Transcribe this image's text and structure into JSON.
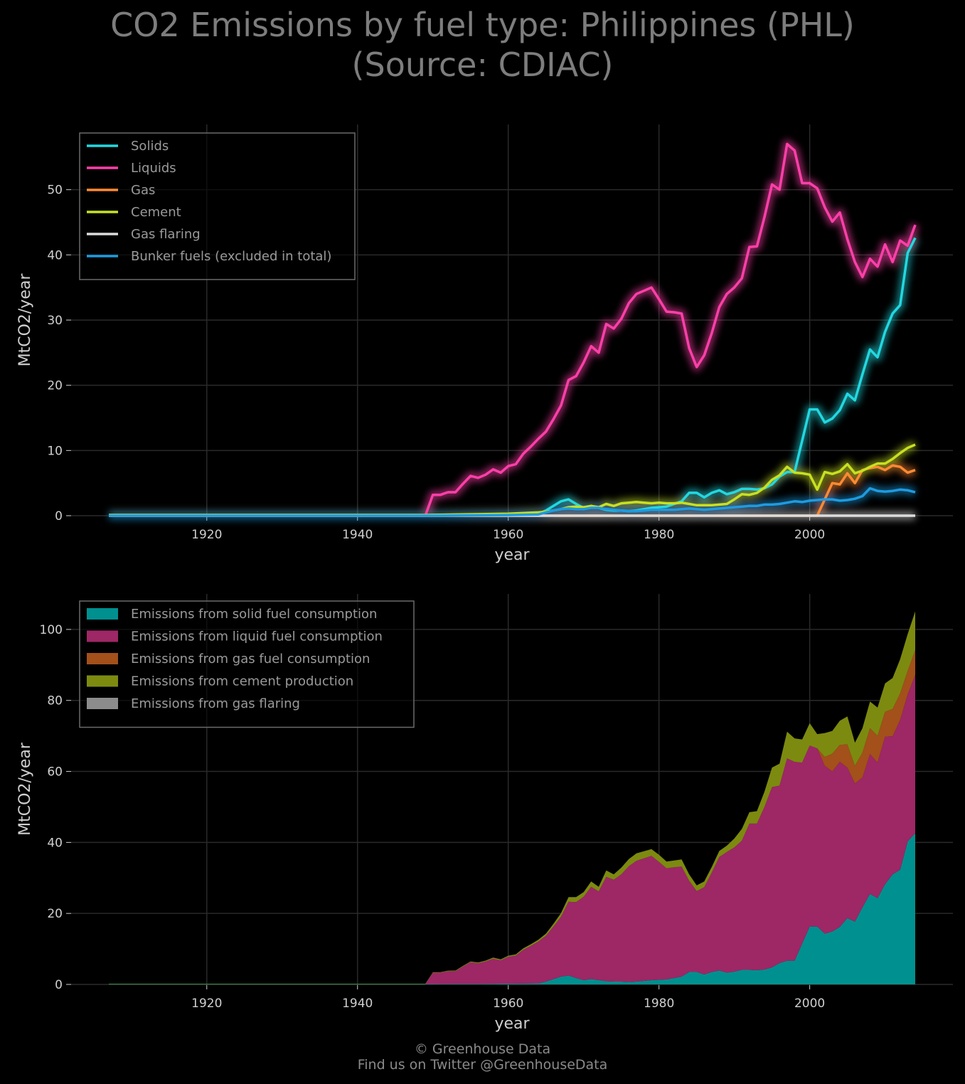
{
  "title": {
    "line1": "CO2 Emissions by fuel type: Philippines (PHL)",
    "line2": "(Source: CDIAC)"
  },
  "footer": {
    "line1": "© Greenhouse Data",
    "line2": "Find us on Twitter @GreenhouseData"
  },
  "colors": {
    "background": "#000000",
    "grid": "#2a2a2a",
    "axis_text": "#cfcfcf",
    "solids": "#22d8e0",
    "liquids": "#ff3fa9",
    "gas": "#ff8a33",
    "cement": "#c8e020",
    "gas_flaring": "#dcdcdc",
    "bunker": "#1e9be0",
    "area_solid": "#00908f",
    "area_liquid": "#9e2766",
    "area_gas": "#a3501a",
    "area_cement": "#7d8a10",
    "area_flaring": "#8c8c8c"
  },
  "chart_data": [
    {
      "type": "line",
      "xlabel": "year",
      "ylabel": "MtCO2/year",
      "xlim": [
        1902,
        2019
      ],
      "ylim": [
        0,
        60
      ],
      "xticks": [
        1920,
        1940,
        1960,
        1980,
        2000
      ],
      "yticks": [
        0,
        10,
        20,
        30,
        40,
        50
      ],
      "grid": true,
      "legend_position": "top-left",
      "series": [
        {
          "name": "Solids",
          "color": "#22d8e0",
          "x": [
            1907,
            1949,
            1960,
            1964,
            1965,
            1966,
            1967,
            1968,
            1969,
            1970,
            1971,
            1972,
            1973,
            1974,
            1975,
            1976,
            1977,
            1978,
            1979,
            1980,
            1981,
            1982,
            1983,
            1984,
            1985,
            1986,
            1987,
            1988,
            1989,
            1990,
            1991,
            1992,
            1993,
            1994,
            1995,
            1996,
            1997,
            1998,
            1999,
            2000,
            2001,
            2002,
            2003,
            2004,
            2005,
            2006,
            2007,
            2008,
            2009,
            2010,
            2011,
            2012,
            2013,
            2014
          ],
          "y": [
            0.1,
            0.1,
            0.2,
            0.3,
            0.8,
            1.5,
            2.2,
            2.5,
            1.8,
            1.2,
            1.5,
            1.2,
            0.9,
            0.8,
            0.8,
            0.7,
            0.8,
            1.0,
            1.2,
            1.3,
            1.4,
            1.8,
            2.2,
            3.5,
            3.5,
            2.8,
            3.5,
            3.9,
            3.3,
            3.6,
            4.1,
            4.1,
            4.0,
            4.2,
            4.8,
            6.0,
            6.7,
            6.7,
            11.5,
            16.3,
            16.3,
            14.3,
            14.9,
            16.2,
            18.7,
            17.7,
            21.7,
            25.5,
            24.3,
            28.2,
            31.0,
            32.3,
            40.3,
            42.6
          ]
        },
        {
          "name": "Liquids",
          "color": "#ff3fa9",
          "x": [
            1907,
            1949,
            1950,
            1951,
            1952,
            1953,
            1954,
            1955,
            1956,
            1957,
            1958,
            1959,
            1960,
            1961,
            1962,
            1963,
            1964,
            1965,
            1966,
            1967,
            1968,
            1969,
            1970,
            1971,
            1972,
            1973,
            1974,
            1975,
            1976,
            1977,
            1978,
            1979,
            1980,
            1981,
            1982,
            1983,
            1984,
            1985,
            1986,
            1987,
            1988,
            1989,
            1990,
            1991,
            1992,
            1993,
            1994,
            1995,
            1996,
            1997,
            1998,
            1999,
            2000,
            2001,
            2002,
            2003,
            2004,
            2005,
            2006,
            2007,
            2008,
            2009,
            2010,
            2011,
            2012,
            2013,
            2014
          ],
          "y": [
            0,
            0,
            3.2,
            3.2,
            3.6,
            3.6,
            4.9,
            6.1,
            5.8,
            6.3,
            7.1,
            6.6,
            7.6,
            7.9,
            9.5,
            10.6,
            11.8,
            12.9,
            14.8,
            16.9,
            20.8,
            21.4,
            23.5,
            26.0,
            25.0,
            29.4,
            28.7,
            30.2,
            32.6,
            34.0,
            34.5,
            35.0,
            33.2,
            31.3,
            31.2,
            31.0,
            25.7,
            22.8,
            24.6,
            28.0,
            32.0,
            34.0,
            35.0,
            36.4,
            41.2,
            41.3,
            45.8,
            50.8,
            50.0,
            57.0,
            56.0,
            51.0,
            51.0,
            50.2,
            47.3,
            45.1,
            46.5,
            42.4,
            38.9,
            36.6,
            39.4,
            38.2,
            41.6,
            38.9,
            42.2,
            41.4,
            44.6
          ]
        },
        {
          "name": "Gas",
          "color": "#ff8a33",
          "x": [
            1907,
            2000,
            2001,
            2002,
            2003,
            2004,
            2005,
            2006,
            2007,
            2008,
            2009,
            2010,
            2011,
            2012,
            2013,
            2014
          ],
          "y": [
            0,
            0,
            0,
            2.5,
            5.0,
            4.8,
            6.5,
            5.0,
            7.0,
            7.3,
            7.5,
            7.0,
            7.7,
            7.5,
            6.6,
            7.0
          ]
        },
        {
          "name": "Cement",
          "color": "#c8e020",
          "x": [
            1907,
            1949,
            1960,
            1964,
            1965,
            1966,
            1967,
            1968,
            1969,
            1970,
            1971,
            1972,
            1973,
            1974,
            1975,
            1976,
            1977,
            1978,
            1979,
            1980,
            1981,
            1982,
            1983,
            1984,
            1985,
            1986,
            1987,
            1988,
            1989,
            1990,
            1991,
            1992,
            1993,
            1994,
            1995,
            1996,
            1997,
            1998,
            1999,
            2000,
            2001,
            2002,
            2003,
            2004,
            2005,
            2006,
            2007,
            2008,
            2009,
            2010,
            2011,
            2012,
            2013,
            2014
          ],
          "y": [
            0.1,
            0.1,
            0.3,
            0.5,
            0.6,
            0.8,
            1.0,
            1.3,
            1.4,
            1.3,
            1.5,
            1.3,
            1.8,
            1.5,
            1.9,
            2.0,
            2.1,
            2.0,
            1.9,
            2.0,
            1.9,
            1.9,
            2.0,
            1.8,
            1.6,
            1.6,
            1.6,
            1.7,
            1.8,
            2.5,
            3.3,
            3.2,
            3.5,
            4.3,
            5.5,
            6.2,
            7.5,
            6.6,
            6.5,
            6.3,
            4.0,
            6.7,
            6.4,
            6.8,
            7.9,
            6.5,
            6.9,
            7.5,
            8.0,
            8.0,
            8.7,
            9.6,
            10.4,
            10.9
          ]
        },
        {
          "name": "Gas flaring",
          "color": "#dcdcdc",
          "x": [
            1907,
            2014
          ],
          "y": [
            0,
            0
          ]
        },
        {
          "name": "Bunker fuels (excluded in total)",
          "color": "#1e9be0",
          "x": [
            1907,
            1949,
            1960,
            1964,
            1965,
            1966,
            1967,
            1968,
            1969,
            1970,
            1971,
            1972,
            1973,
            1974,
            1975,
            1976,
            1977,
            1978,
            1979,
            1980,
            1981,
            1982,
            1983,
            1984,
            1985,
            1986,
            1987,
            1988,
            1989,
            1990,
            1991,
            1992,
            1993,
            1994,
            1995,
            1996,
            1997,
            1998,
            1999,
            2000,
            2001,
            2002,
            2003,
            2004,
            2005,
            2006,
            2007,
            2008,
            2009,
            2010,
            2011,
            2012,
            2013,
            2014
          ],
          "y": [
            0,
            0,
            0.1,
            0.2,
            0.5,
            0.8,
            1.0,
            1.1,
            1.0,
            1.0,
            1.2,
            1.2,
            1.0,
            0.9,
            0.8,
            0.7,
            0.7,
            0.8,
            0.9,
            0.9,
            0.9,
            0.9,
            1.0,
            1.1,
            1.0,
            0.9,
            1.0,
            1.1,
            1.2,
            1.3,
            1.4,
            1.5,
            1.5,
            1.7,
            1.7,
            1.8,
            2.0,
            2.2,
            2.1,
            2.3,
            2.4,
            2.5,
            2.5,
            2.3,
            2.4,
            2.6,
            3.0,
            4.2,
            3.8,
            3.7,
            3.8,
            4.0,
            3.9,
            3.6
          ]
        }
      ]
    },
    {
      "type": "area",
      "stacked": true,
      "xlabel": "year",
      "ylabel": "MtCO2/year",
      "xlim": [
        1902,
        2019
      ],
      "ylim": [
        0,
        110
      ],
      "xticks": [
        1920,
        1940,
        1960,
        1980,
        2000
      ],
      "yticks": [
        0,
        20,
        40,
        60,
        80,
        100
      ],
      "grid": true,
      "legend_position": "top-left",
      "series": [
        {
          "name": "Emissions from solid fuel consumption",
          "color": "#00908f",
          "ref": 0
        },
        {
          "name": "Emissions from liquid fuel consumption",
          "color": "#9e2766",
          "ref": 1
        },
        {
          "name": "Emissions from gas fuel consumption",
          "color": "#a3501a",
          "ref": 2
        },
        {
          "name": "Emissions from cement production",
          "color": "#7d8a10",
          "ref": 3
        },
        {
          "name": "Emissions from gas flaring",
          "color": "#8c8c8c",
          "ref": 4
        }
      ]
    }
  ]
}
